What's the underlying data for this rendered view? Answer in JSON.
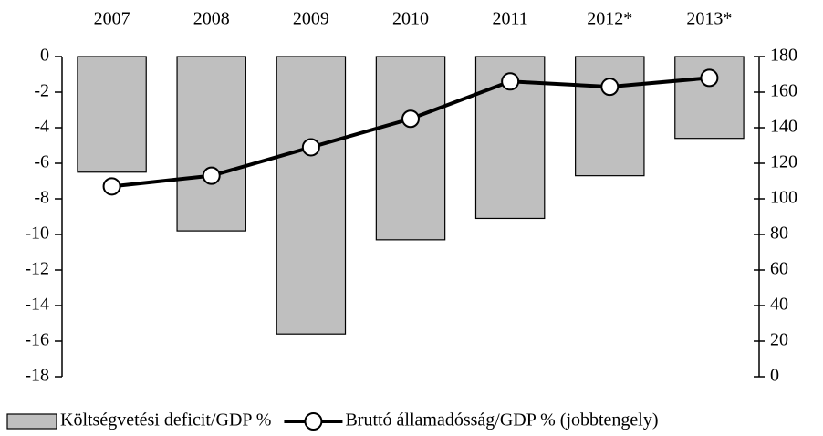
{
  "chart_data": {
    "type": "bar",
    "categories": [
      "2007",
      "2008",
      "2009",
      "2010",
      "2011",
      "2012*",
      "2013*"
    ],
    "series": [
      {
        "name": "Költségvetési deficit/GDP %",
        "type": "bar",
        "color": "#bfbfbf",
        "values": [
          -6.5,
          -9.8,
          -15.6,
          -10.3,
          -9.1,
          -6.7,
          -4.6
        ]
      },
      {
        "name": "Bruttó államadósság/GDP % (jobbtengely)",
        "type": "line",
        "axis": "y2",
        "color": "#000000",
        "values": [
          107,
          113,
          129,
          145,
          166,
          163,
          168
        ]
      }
    ],
    "ylim": [
      -18,
      0
    ],
    "yticks": [
      0,
      -2,
      -4,
      -6,
      -8,
      -10,
      -12,
      -14,
      -16,
      -18
    ],
    "y2lim": [
      0,
      180
    ],
    "y2ticks": [
      0,
      20,
      40,
      60,
      80,
      100,
      120,
      140,
      160,
      180
    ],
    "grid": false,
    "legend": "bottom"
  }
}
